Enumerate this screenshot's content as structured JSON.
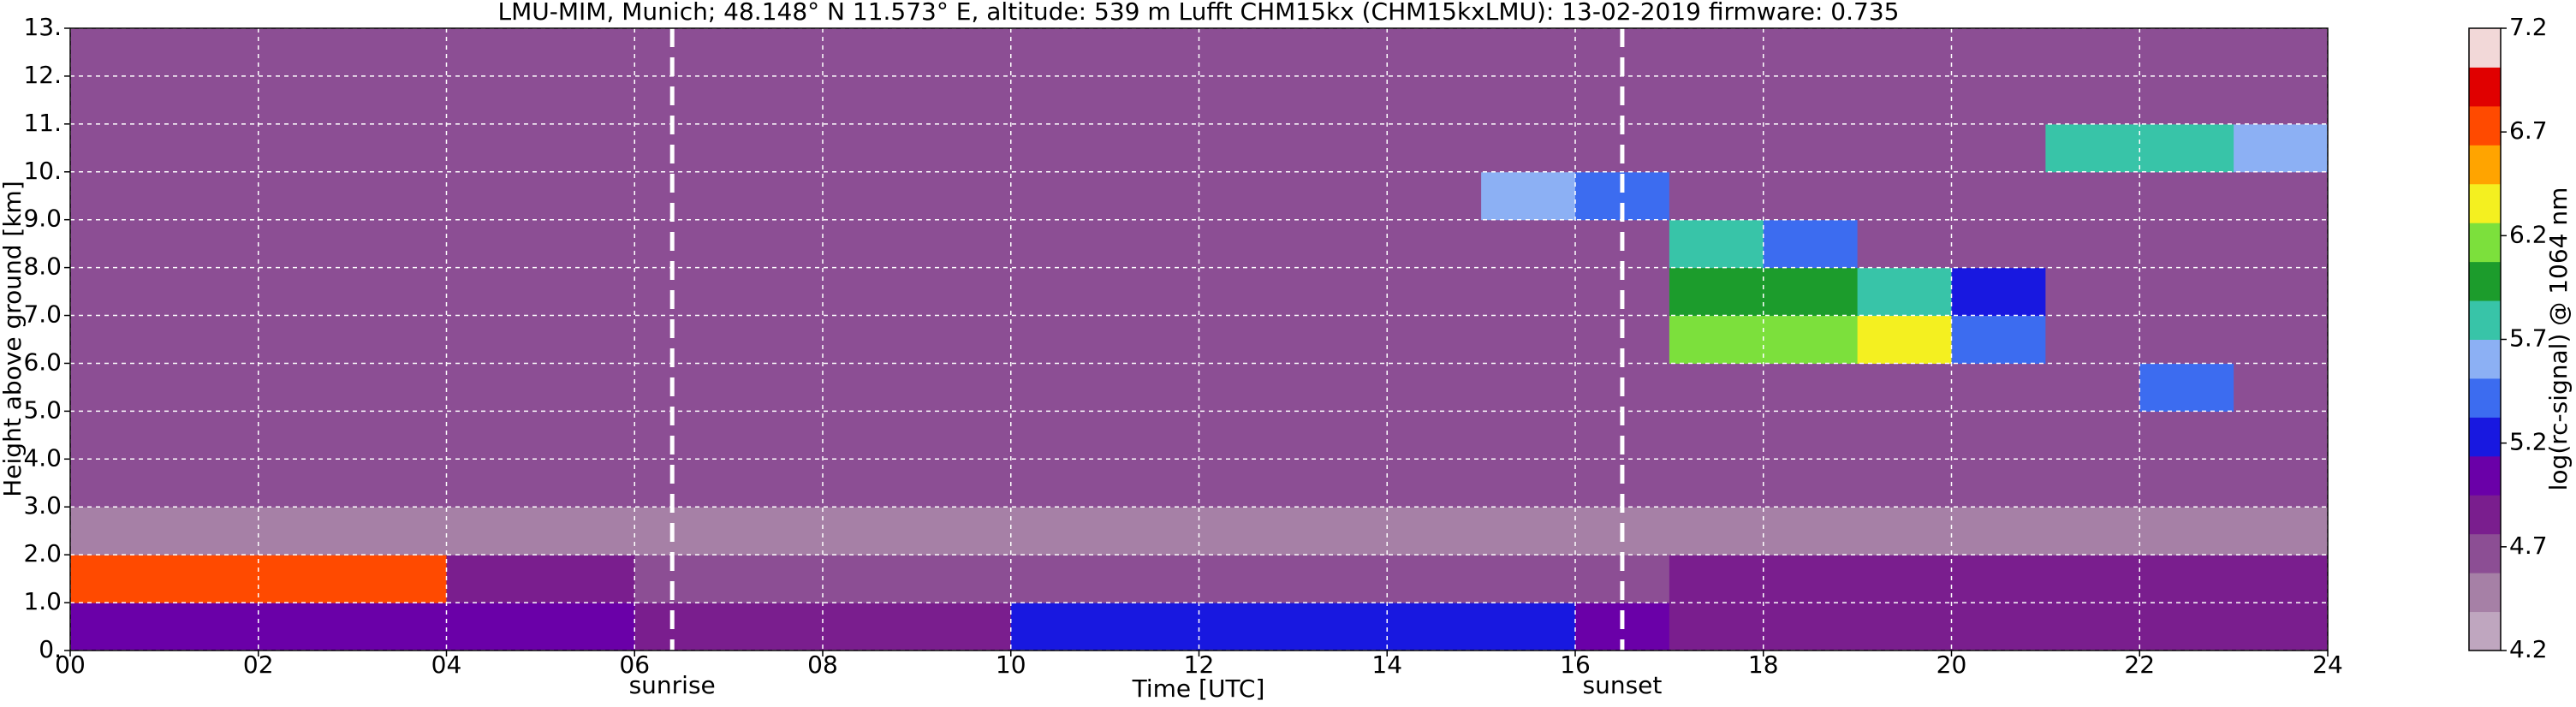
{
  "chart_data": {
    "type": "heatmap",
    "title": "LMU-MIM, Munich; 48.148° N 11.573° E, altitude: 539 m    Lufft CHM15kx (CHM15kxLMU): 13-02-2019    firmware: 0.735",
    "xlabel": "Time [UTC]",
    "ylabel": "Height above ground [km]",
    "xbins": [
      0,
      1,
      2,
      3,
      4,
      5,
      6,
      7,
      8,
      9,
      10,
      11,
      12,
      13,
      14,
      15,
      16,
      17,
      18,
      19,
      20,
      21,
      22,
      23,
      24
    ],
    "ybins": [
      0,
      1,
      2,
      3,
      4,
      5,
      6,
      7,
      8,
      9,
      10,
      11,
      12,
      13
    ],
    "z": [
      [
        5.1,
        5.1,
        5.1,
        5.1,
        5.1,
        5.1,
        4.9,
        4.9,
        4.9,
        4.9,
        5.3,
        5.3,
        5.3,
        5.3,
        5.3,
        5.3,
        5.0,
        4.9,
        4.9,
        4.9,
        4.9,
        4.9,
        4.9,
        4.9
      ],
      [
        6.7,
        6.7,
        6.7,
        6.7,
        4.8,
        4.8,
        4.7,
        4.7,
        4.7,
        4.7,
        4.7,
        4.7,
        4.7,
        4.7,
        4.7,
        4.7,
        4.7,
        4.8,
        4.8,
        4.8,
        4.8,
        4.8,
        4.8,
        4.8
      ],
      [
        4.5,
        4.5,
        4.5,
        4.5,
        4.5,
        4.5,
        4.5,
        4.5,
        4.5,
        4.5,
        4.5,
        4.5,
        4.5,
        4.5,
        4.5,
        4.5,
        4.5,
        4.5,
        4.5,
        4.5,
        4.5,
        4.5,
        4.5,
        4.5
      ],
      [
        4.6,
        4.6,
        4.6,
        4.6,
        4.6,
        4.6,
        4.6,
        4.6,
        4.6,
        4.6,
        4.6,
        4.6,
        4.6,
        4.6,
        4.6,
        4.6,
        4.6,
        4.6,
        4.6,
        4.6,
        4.6,
        4.6,
        4.6,
        4.6
      ],
      [
        4.6,
        4.6,
        4.6,
        4.6,
        4.6,
        4.6,
        4.6,
        4.6,
        4.6,
        4.6,
        4.6,
        4.6,
        4.6,
        4.6,
        4.6,
        4.6,
        4.6,
        4.6,
        4.6,
        4.6,
        4.6,
        4.6,
        4.6,
        4.6
      ],
      [
        4.6,
        4.6,
        4.6,
        4.6,
        4.6,
        4.6,
        4.6,
        4.6,
        4.6,
        4.6,
        4.6,
        4.6,
        4.6,
        4.6,
        4.6,
        4.6,
        4.6,
        4.6,
        4.6,
        4.6,
        4.6,
        4.6,
        5.5,
        4.6
      ],
      [
        4.6,
        4.6,
        4.6,
        4.6,
        4.6,
        4.6,
        4.6,
        4.6,
        4.6,
        4.6,
        4.6,
        4.6,
        4.6,
        4.6,
        4.6,
        4.6,
        4.6,
        6.2,
        6.2,
        6.4,
        5.4,
        4.6,
        4.6,
        4.6
      ],
      [
        4.6,
        4.6,
        4.6,
        4.6,
        4.6,
        4.6,
        4.6,
        4.6,
        4.6,
        4.6,
        4.6,
        4.6,
        4.6,
        4.6,
        4.6,
        4.6,
        4.6,
        5.9,
        6.0,
        5.8,
        5.2,
        4.6,
        4.6,
        4.6
      ],
      [
        4.6,
        4.6,
        4.6,
        4.6,
        4.6,
        4.6,
        4.6,
        4.6,
        4.6,
        4.6,
        4.6,
        4.6,
        4.6,
        4.6,
        4.6,
        4.6,
        4.6,
        5.7,
        5.5,
        4.6,
        4.6,
        4.6,
        4.6,
        4.6
      ],
      [
        4.6,
        4.6,
        4.6,
        4.6,
        4.6,
        4.6,
        4.6,
        4.6,
        4.6,
        4.6,
        4.6,
        4.6,
        4.6,
        4.6,
        4.6,
        5.6,
        5.4,
        4.6,
        4.6,
        4.6,
        4.6,
        4.6,
        4.6,
        4.6
      ],
      [
        4.6,
        4.6,
        4.6,
        4.6,
        4.6,
        4.6,
        4.6,
        4.6,
        4.6,
        4.6,
        4.6,
        4.6,
        4.6,
        4.6,
        4.6,
        4.6,
        4.6,
        4.6,
        4.6,
        4.6,
        4.6,
        5.7,
        5.8,
        5.6
      ],
      [
        4.6,
        4.6,
        4.6,
        4.6,
        4.6,
        4.6,
        4.6,
        4.6,
        4.6,
        4.6,
        4.6,
        4.6,
        4.6,
        4.6,
        4.6,
        4.6,
        4.6,
        4.6,
        4.6,
        4.6,
        4.6,
        4.6,
        4.6,
        4.6
      ],
      [
        4.6,
        4.6,
        4.6,
        4.6,
        4.6,
        4.6,
        4.6,
        4.6,
        4.6,
        4.6,
        4.6,
        4.6,
        4.6,
        4.6,
        4.6,
        4.6,
        4.6,
        4.6,
        4.6,
        4.6,
        4.6,
        4.6,
        4.6,
        4.6
      ]
    ],
    "xlim": [
      0,
      24
    ],
    "xticks": [
      {
        "value": 0,
        "label": "00"
      },
      {
        "value": 2,
        "label": "02"
      },
      {
        "value": 4,
        "label": "04"
      },
      {
        "value": 6,
        "label": "06"
      },
      {
        "value": 8,
        "label": "08"
      },
      10,
      12,
      14,
      16,
      18,
      20,
      22,
      24
    ],
    "ylim": [
      0,
      13
    ],
    "yticks": [
      {
        "value": 0,
        "label": "0."
      },
      {
        "value": 1,
        "label": "1.0"
      },
      {
        "value": 2,
        "label": "2.0"
      },
      {
        "value": 3,
        "label": "3.0"
      },
      {
        "value": 4,
        "label": "4.0"
      },
      {
        "value": 5,
        "label": "5.0"
      },
      {
        "value": 6,
        "label": "6.0"
      },
      {
        "value": 7,
        "label": "7.0"
      },
      {
        "value": 8,
        "label": "8.0"
      },
      {
        "value": 9,
        "label": "9.0"
      },
      {
        "value": 10,
        "label": "10."
      },
      {
        "value": 11,
        "label": "11."
      },
      {
        "value": 12,
        "label": "12."
      },
      {
        "value": 13,
        "label": "13."
      }
    ],
    "grid": true,
    "annotations": [
      {
        "x": 6.4,
        "label": "sunrise"
      },
      {
        "x": 16.5,
        "label": "sunset"
      }
    ],
    "colorbar": {
      "label": "log(rc-signal) @ 1064 nm",
      "clim": [
        4.2,
        7.2
      ],
      "ticks": [
        4.2,
        4.7,
        5.2,
        5.7,
        6.2,
        6.7,
        7.2
      ],
      "colors": [
        "#bfa6bf",
        "#a680a6",
        "#8c4e94",
        "#7a1e8e",
        "#6a00a8",
        "#1818e0",
        "#3c6cf0",
        "#8cb0f4",
        "#38c4a8",
        "#1c9c2c",
        "#7ce03c",
        "#f4f020",
        "#ffa400",
        "#ff4a00",
        "#e00000",
        "#f2d8d8"
      ]
    }
  }
}
